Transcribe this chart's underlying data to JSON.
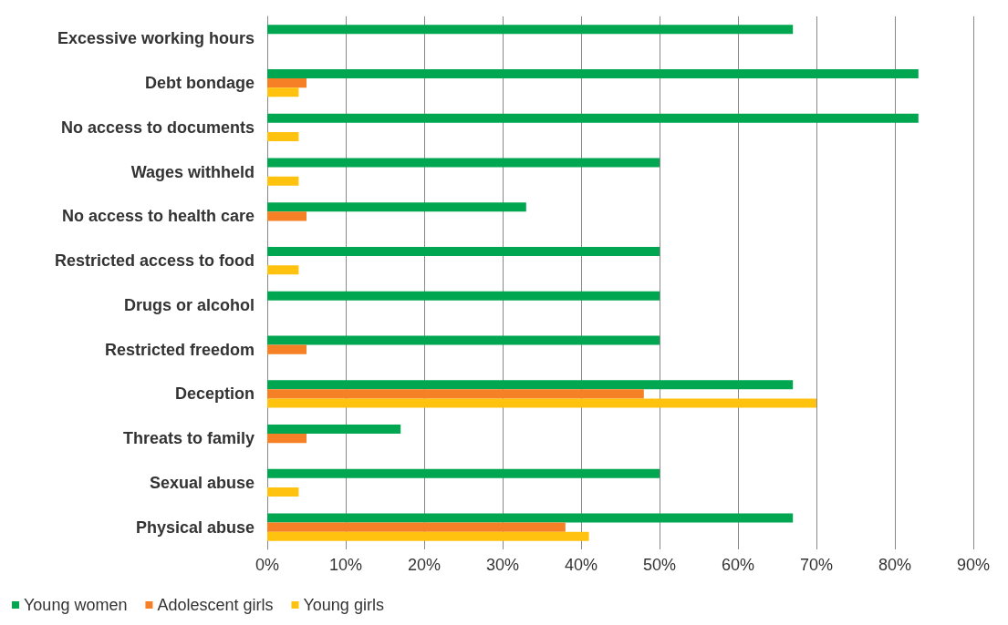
{
  "chart_data": {
    "type": "bar",
    "orientation": "horizontal",
    "categories": [
      "Excessive working hours",
      "Debt bondage",
      "No access to documents",
      "Wages withheld",
      "No access to health care",
      "Restricted access to food",
      "Drugs or alcohol",
      "Restricted freedom",
      "Deception",
      "Threats to family",
      "Sexual abuse",
      "Physical abuse"
    ],
    "series": [
      {
        "name": "Young women",
        "color": "#00a650",
        "values": [
          67,
          83,
          83,
          50,
          33,
          50,
          50,
          50,
          67,
          17,
          50,
          67
        ]
      },
      {
        "name": "Adolescent girls",
        "color": "#f58025",
        "values": [
          null,
          5,
          null,
          null,
          5,
          null,
          null,
          5,
          48,
          5,
          null,
          38
        ]
      },
      {
        "name": "Young girls",
        "color": "#ffc20e",
        "values": [
          null,
          4,
          4,
          4,
          null,
          4,
          null,
          null,
          70,
          null,
          4,
          41
        ]
      }
    ],
    "xlim": [
      0,
      90
    ],
    "xticks": [
      {
        "value": 0,
        "label": "0%"
      },
      {
        "value": 10,
        "label": "10%"
      },
      {
        "value": 20,
        "label": "20%"
      },
      {
        "value": 30,
        "label": "30%"
      },
      {
        "value": 40,
        "label": "40%"
      },
      {
        "value": 50,
        "label": "50%"
      },
      {
        "value": 60,
        "label": "60%"
      },
      {
        "value": 70,
        "label": "70%"
      },
      {
        "value": 80,
        "label": "80%"
      },
      {
        "value": 90,
        "label": "90%"
      }
    ],
    "grid": "x",
    "legend": "bottom left"
  }
}
